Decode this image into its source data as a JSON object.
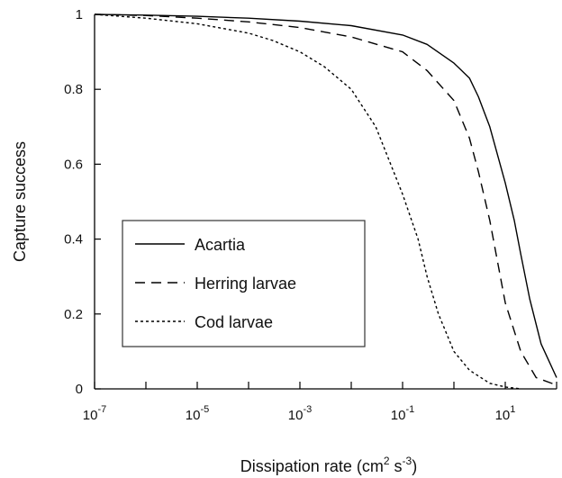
{
  "chart_data": {
    "type": "line",
    "title": "",
    "xlabel": {
      "main": "Dissipation rate  (cm",
      "sup1": "2",
      "mid": " s",
      "sup2": "-3",
      "end": ")"
    },
    "ylabel": "Capture  success",
    "x_scale": "log",
    "xlim": [
      1e-07,
      100
    ],
    "ylim": [
      0,
      1
    ],
    "x_ticks": [
      {
        "base": "10",
        "exp": "-7",
        "value": 1e-07
      },
      {
        "base": "10",
        "exp": "-5",
        "value": 1e-05
      },
      {
        "base": "10",
        "exp": "-3",
        "value": 0.001
      },
      {
        "base": "10",
        "exp": "-1",
        "value": 0.1
      },
      {
        "base": "10",
        "exp": "1",
        "value": 10
      }
    ],
    "y_ticks": [
      "0",
      "0.2",
      "0.4",
      "0.6",
      "0.8",
      "1"
    ],
    "grid": false,
    "legend_position": "center-left",
    "series": [
      {
        "name": "Acartia",
        "style": "solid",
        "color": "#000000",
        "x": [
          1e-07,
          1e-06,
          1e-05,
          0.0001,
          0.001,
          0.01,
          0.1,
          0.3,
          1,
          2,
          3,
          5,
          10,
          15,
          20,
          30,
          50,
          100
        ],
        "y": [
          1.0,
          0.998,
          0.995,
          0.99,
          0.982,
          0.97,
          0.945,
          0.92,
          0.87,
          0.83,
          0.78,
          0.7,
          0.55,
          0.45,
          0.36,
          0.24,
          0.12,
          0.03
        ]
      },
      {
        "name": "Herring larvae",
        "style": "dashed",
        "color": "#000000",
        "x": [
          1e-07,
          1e-06,
          1e-05,
          0.0001,
          0.001,
          0.01,
          0.1,
          0.3,
          1,
          2,
          3,
          5,
          10,
          20,
          40,
          100
        ],
        "y": [
          1.0,
          0.997,
          0.99,
          0.98,
          0.965,
          0.94,
          0.9,
          0.85,
          0.77,
          0.67,
          0.58,
          0.45,
          0.23,
          0.1,
          0.03,
          0.01
        ]
      },
      {
        "name": "Cod larvae",
        "style": "dotted",
        "color": "#000000",
        "x": [
          1e-07,
          1e-06,
          1e-05,
          0.0001,
          0.0003,
          0.001,
          0.003,
          0.01,
          0.03,
          0.1,
          0.2,
          0.3,
          0.5,
          1,
          2,
          5,
          10,
          20
        ],
        "y": [
          1.0,
          0.99,
          0.975,
          0.95,
          0.93,
          0.9,
          0.86,
          0.8,
          0.7,
          0.52,
          0.4,
          0.3,
          0.2,
          0.1,
          0.05,
          0.015,
          0.005,
          0.0
        ]
      }
    ]
  }
}
